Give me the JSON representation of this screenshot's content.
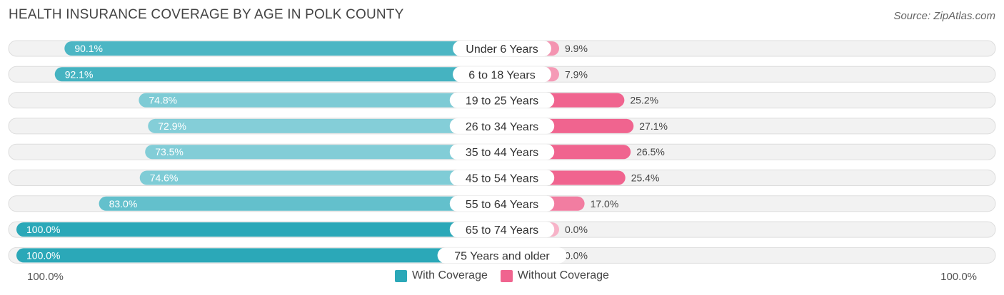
{
  "title": "HEALTH INSURANCE COVERAGE BY AGE IN POLK COUNTY",
  "source": "Source: ZipAtlas.com",
  "colors": {
    "with_coverage": "#2ba8b8",
    "with_coverage_light": "#8ed2db",
    "without_coverage": "#f0648f",
    "without_coverage_light": "#f7b3c8",
    "row_bg": "#f2f2f2",
    "row_border": "#dddddd"
  },
  "axis": {
    "left_label": "100.0%",
    "right_label": "100.0%"
  },
  "legend": {
    "with_label": "With Coverage",
    "without_label": "Without Coverage"
  },
  "chart_data": {
    "type": "bar",
    "orientation": "diverging-horizontal",
    "title": "HEALTH INSURANCE COVERAGE BY AGE IN POLK COUNTY",
    "categories": [
      "Under 6 Years",
      "6 to 18 Years",
      "19 to 25 Years",
      "26 to 34 Years",
      "35 to 44 Years",
      "45 to 54 Years",
      "55 to 64 Years",
      "65 to 74 Years",
      "75 Years and older"
    ],
    "series": [
      {
        "name": "With Coverage",
        "values": [
          90.1,
          92.1,
          74.8,
          72.9,
          73.5,
          74.6,
          83.0,
          100.0,
          100.0
        ],
        "labels": [
          "90.1%",
          "92.1%",
          "74.8%",
          "72.9%",
          "73.5%",
          "74.6%",
          "83.0%",
          "100.0%",
          "100.0%"
        ]
      },
      {
        "name": "Without Coverage",
        "values": [
          9.9,
          7.9,
          25.2,
          27.1,
          26.5,
          25.4,
          17.0,
          0.0,
          0.0
        ],
        "labels": [
          "9.9%",
          "7.9%",
          "25.2%",
          "27.1%",
          "26.5%",
          "25.4%",
          "17.0%",
          "0.0%",
          "0.0%"
        ]
      }
    ],
    "xlim": [
      -100,
      100
    ],
    "legend_position": "bottom-center"
  }
}
